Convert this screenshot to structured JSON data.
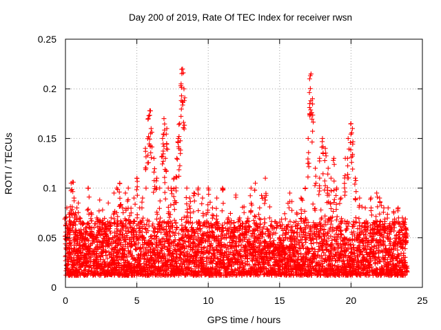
{
  "chart_data": {
    "type": "scatter",
    "title": "Day 200 of 2019, Rate Of TEC Index for receiver rwsn",
    "xlabel": "GPS time / hours",
    "ylabel": "ROTI / TECUs",
    "xlim": [
      0,
      25
    ],
    "ylim": [
      0,
      0.25
    ],
    "xticks": [
      0,
      5,
      10,
      15,
      20,
      25
    ],
    "yticks": [
      0,
      0.05,
      0.1,
      0.15,
      0.2,
      0.25
    ],
    "xtick_labels": [
      "0",
      "5",
      "10",
      "15",
      "20",
      "25"
    ],
    "ytick_labels": [
      "0",
      "0.05",
      "0.1",
      "0.15",
      "0.2",
      "0.25"
    ],
    "grid": true,
    "marker": "+",
    "color": "#ff0000",
    "series": [
      {
        "name": "ROTI",
        "x": [
          0.0,
          0.1,
          0.2,
          0.3,
          0.4,
          0.5,
          0.6,
          0.7,
          0.8,
          0.9,
          1.0,
          1.2,
          1.4,
          1.6,
          1.8,
          2.0,
          2.2,
          2.4,
          2.6,
          2.8,
          3.0,
          3.2,
          3.4,
          3.6,
          3.8,
          4.0,
          4.2,
          4.4,
          4.6,
          4.8,
          5.0,
          5.2,
          5.4,
          5.6,
          5.8,
          5.9,
          6.0,
          6.2,
          6.4,
          6.6,
          6.8,
          6.9,
          7.0,
          7.1,
          7.2,
          7.4,
          7.6,
          7.8,
          7.9,
          8.0,
          8.1,
          8.2,
          8.3,
          8.5,
          8.7,
          9.0,
          9.3,
          9.6,
          10.0,
          10.3,
          10.6,
          11.0,
          11.4,
          11.8,
          12.2,
          12.6,
          13.0,
          13.3,
          13.6,
          14.0,
          14.3,
          14.6,
          15.0,
          15.4,
          15.8,
          16.2,
          16.5,
          16.8,
          17.0,
          17.1,
          17.2,
          17.3,
          17.5,
          17.8,
          18.0,
          18.2,
          18.4,
          18.6,
          18.8,
          19.0,
          19.3,
          19.6,
          19.8,
          20.0,
          20.1,
          20.3,
          20.6,
          21.0,
          21.4,
          21.8,
          22.0,
          22.3,
          22.6,
          23.0,
          23.3,
          23.6,
          23.8
        ],
        "y": [
          0.07,
          0.08,
          0.06,
          0.075,
          0.105,
          0.106,
          0.09,
          0.075,
          0.08,
          0.085,
          0.07,
          0.065,
          0.06,
          0.1,
          0.075,
          0.06,
          0.07,
          0.088,
          0.078,
          0.06,
          0.085,
          0.07,
          0.095,
          0.1,
          0.105,
          0.08,
          0.095,
          0.1,
          0.075,
          0.09,
          0.11,
          0.08,
          0.09,
          0.14,
          0.17,
          0.178,
          0.16,
          0.13,
          0.11,
          0.1,
          0.15,
          0.17,
          0.13,
          0.16,
          0.1,
          0.1,
          0.11,
          0.13,
          0.15,
          0.165,
          0.205,
          0.22,
          0.2,
          0.1,
          0.09,
          0.095,
          0.1,
          0.09,
          0.1,
          0.08,
          0.09,
          0.1,
          0.07,
          0.065,
          0.07,
          0.06,
          0.1,
          0.105,
          0.08,
          0.11,
          0.07,
          0.06,
          0.05,
          0.05,
          0.06,
          0.075,
          0.09,
          0.1,
          0.15,
          0.21,
          0.215,
          0.19,
          0.12,
          0.13,
          0.15,
          0.14,
          0.12,
          0.11,
          0.13,
          0.1,
          0.09,
          0.13,
          0.15,
          0.165,
          0.16,
          0.11,
          0.09,
          0.08,
          0.09,
          0.095,
          0.09,
          0.08,
          0.08,
          0.075,
          0.08,
          0.07,
          0.06
        ]
      }
    ]
  }
}
